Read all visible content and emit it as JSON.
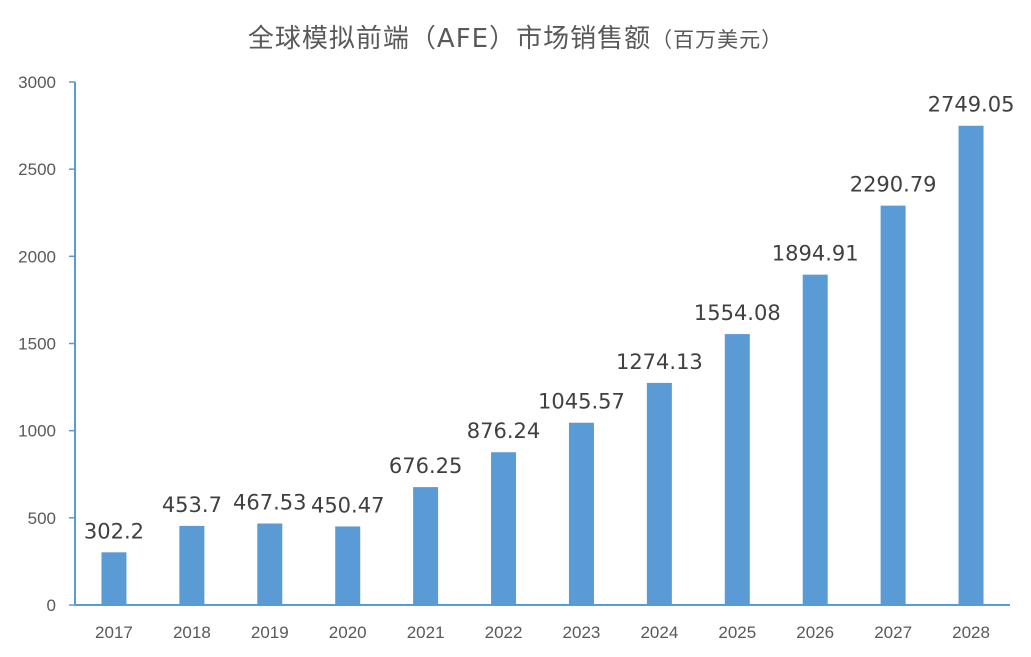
{
  "chart_data": {
    "type": "bar",
    "title": "全球模拟前端（AFE）市场销售额",
    "title_unit": "（百万美元）",
    "categories": [
      "2017",
      "2018",
      "2019",
      "2020",
      "2021",
      "2022",
      "2023",
      "2024",
      "2025",
      "2026",
      "2027",
      "2028"
    ],
    "values": [
      302.2,
      453.7,
      467.53,
      450.47,
      676.25,
      876.24,
      1045.57,
      1274.13,
      1554.08,
      1894.91,
      2290.79,
      2749.05
    ],
    "value_labels": [
      "302.2",
      "453.7",
      "467.53",
      "450.47",
      "676.25",
      "876.24",
      "1045.57",
      "1274.13",
      "1554.08",
      "1894.91",
      "2290.79",
      "2749.05"
    ],
    "ylim": [
      0,
      3000
    ],
    "yticks": [
      0,
      500,
      1000,
      1500,
      2000,
      2500,
      3000
    ],
    "xlabel": "",
    "ylabel": "",
    "grid": false,
    "legend": "none",
    "bar_color": "#5b9bd5",
    "axis_color": "#5b9bd5"
  }
}
